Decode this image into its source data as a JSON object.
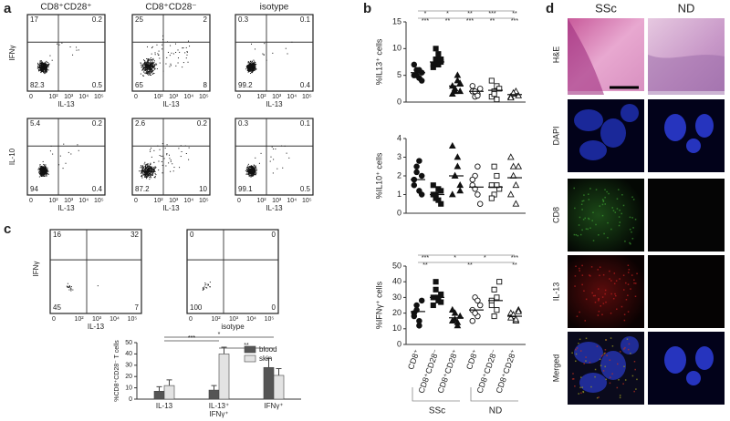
{
  "panels": {
    "a": {
      "label": "a",
      "column_titles": [
        "CD8⁺CD28⁺",
        "CD8⁺CD28⁻",
        "isotype"
      ],
      "row_labels": [
        "IFNγ",
        "IL-10"
      ],
      "x_label": "IL-13",
      "x_ticks": [
        "0",
        "10²",
        "10³",
        "10⁴",
        "10⁵"
      ],
      "plots": [
        [
          17,
          0.2,
          82.3,
          0.5
        ],
        [
          25,
          2,
          65,
          8
        ],
        [
          0.3,
          0.1,
          99.2,
          0.4
        ],
        [
          5.4,
          0.2,
          94,
          0.4
        ],
        [
          2.6,
          0.2,
          87.2,
          10
        ],
        [
          0.3,
          0.1,
          99.1,
          0.5
        ]
      ]
    },
    "b": {
      "label": "b",
      "categories": [
        "CD8⁺",
        "CD8⁺CD28⁻",
        "CD8⁺CD28⁺",
        "CD8⁺",
        "CD8⁺CD28⁻",
        "CD8⁺CD28⁺"
      ],
      "groups": [
        "SSc",
        "ND"
      ],
      "markers": [
        "circle",
        "square",
        "triangle",
        "circle-open",
        "square-open",
        "triangle-open"
      ],
      "plots": [
        {
          "y_label": "%IL13⁺ cells",
          "ylim": [
            0,
            15
          ],
          "yticks": [
            0,
            5,
            10,
            15
          ],
          "values": [
            [
              5,
              6,
              4.5,
              5.5,
              7,
              5,
              6,
              4
            ],
            [
              7,
              8,
              9,
              7.5,
              6.5,
              10,
              7,
              8
            ],
            [
              3,
              2,
              4,
              3.5,
              1.5,
              2.5,
              5,
              2
            ],
            [
              2,
              1,
              1.5,
              2.5,
              3,
              2,
              1.2
            ],
            [
              1,
              2,
              3,
              2.5,
              4,
              1.5,
              0.5
            ],
            [
              1,
              1.5,
              2,
              1.2,
              0.8,
              1.7
            ]
          ],
          "means": [
            5.5,
            7.5,
            3,
            2,
            2.2,
            1.4
          ],
          "significance": [
            "*",
            "*",
            "**",
            "***",
            "**",
            "***",
            "**",
            "***",
            "**",
            "***"
          ]
        },
        {
          "y_label": "%IL10⁺ cells",
          "ylim": [
            0,
            4
          ],
          "yticks": [
            0,
            1,
            2,
            3,
            4
          ],
          "values": [
            [
              1.8,
              2.5,
              1.2,
              2,
              1.5,
              2.2,
              2.8,
              1
            ],
            [
              1,
              0.8,
              1.3,
              0.5,
              1.5,
              1,
              0.7,
              1.2
            ],
            [
              3.6,
              2,
              2.5,
              1.5,
              1,
              2,
              3,
              1.2
            ],
            [
              1.5,
              2,
              1,
              0.5,
              1.8,
              1.3,
              2.5
            ],
            [
              1.5,
              1,
              2,
              1.3,
              0.8,
              2.5,
              1.5
            ],
            [
              3,
              2.5,
              1.5,
              2.5,
              1,
              2,
              0.5
            ]
          ],
          "means": [
            1.8,
            1,
            2,
            1.4,
            1.4,
            1.9
          ],
          "significance": []
        },
        {
          "y_label": "%IFNγ⁺ cells",
          "ylim": [
            0,
            50
          ],
          "yticks": [
            0,
            10,
            20,
            30,
            40,
            50
          ],
          "values": [
            [
              20,
              25,
              15,
              28,
              18,
              22,
              12
            ],
            [
              30,
              35,
              28,
              32,
              25,
              40,
              30,
              27
            ],
            [
              15,
              20,
              12,
              18,
              22,
              16,
              14
            ],
            [
              22,
              30,
              18,
              25,
              15,
              20,
              28
            ],
            [
              28,
              35,
              22,
              40,
              25,
              18,
              30
            ],
            [
              20,
              18,
              15,
              22,
              17,
              19,
              16,
              21
            ]
          ],
          "means": [
            21,
            30,
            17,
            22,
            28,
            18
          ],
          "significance": [
            "***",
            "*",
            "*",
            "***",
            "**",
            "**",
            "**"
          ]
        }
      ]
    },
    "c": {
      "label": "c",
      "y_label": "IFNγ",
      "plots": [
        {
          "quadrants": [
            16,
            32,
            45,
            7
          ],
          "x_label": "IL-13"
        },
        {
          "quadrants": [
            0,
            0,
            100,
            0
          ],
          "x_label": "isotype"
        }
      ],
      "x_ticks": [
        "0",
        "10²",
        "10³",
        "10⁴",
        "10⁵"
      ],
      "bar_chart": {
        "y_label": "%CD8⁺CD28⁻ T cells",
        "categories": [
          [
            "IL-13"
          ],
          [
            "IL-13⁺",
            "IFNγ⁺"
          ],
          [
            "IFNγ⁺"
          ]
        ],
        "series": [
          {
            "name": "blood",
            "color": "#555555",
            "values": [
              7,
              8,
              28
            ],
            "errors": [
              4,
              4,
              8
            ]
          },
          {
            "name": "skin",
            "color": "#e3e3e3",
            "values": [
              12,
              40,
              21
            ],
            "errors": [
              5,
              6,
              6
            ]
          }
        ],
        "ylim": [
          0,
          50
        ],
        "yticks": [
          0,
          10,
          20,
          30,
          40,
          50
        ],
        "significance": [
          "*",
          "***",
          "**"
        ]
      }
    },
    "d": {
      "label": "d",
      "column_titles": [
        "SSc",
        "ND"
      ],
      "row_labels": [
        "H&E",
        "DAPI",
        "CD8",
        "IL-13",
        "Merged"
      ]
    }
  }
}
